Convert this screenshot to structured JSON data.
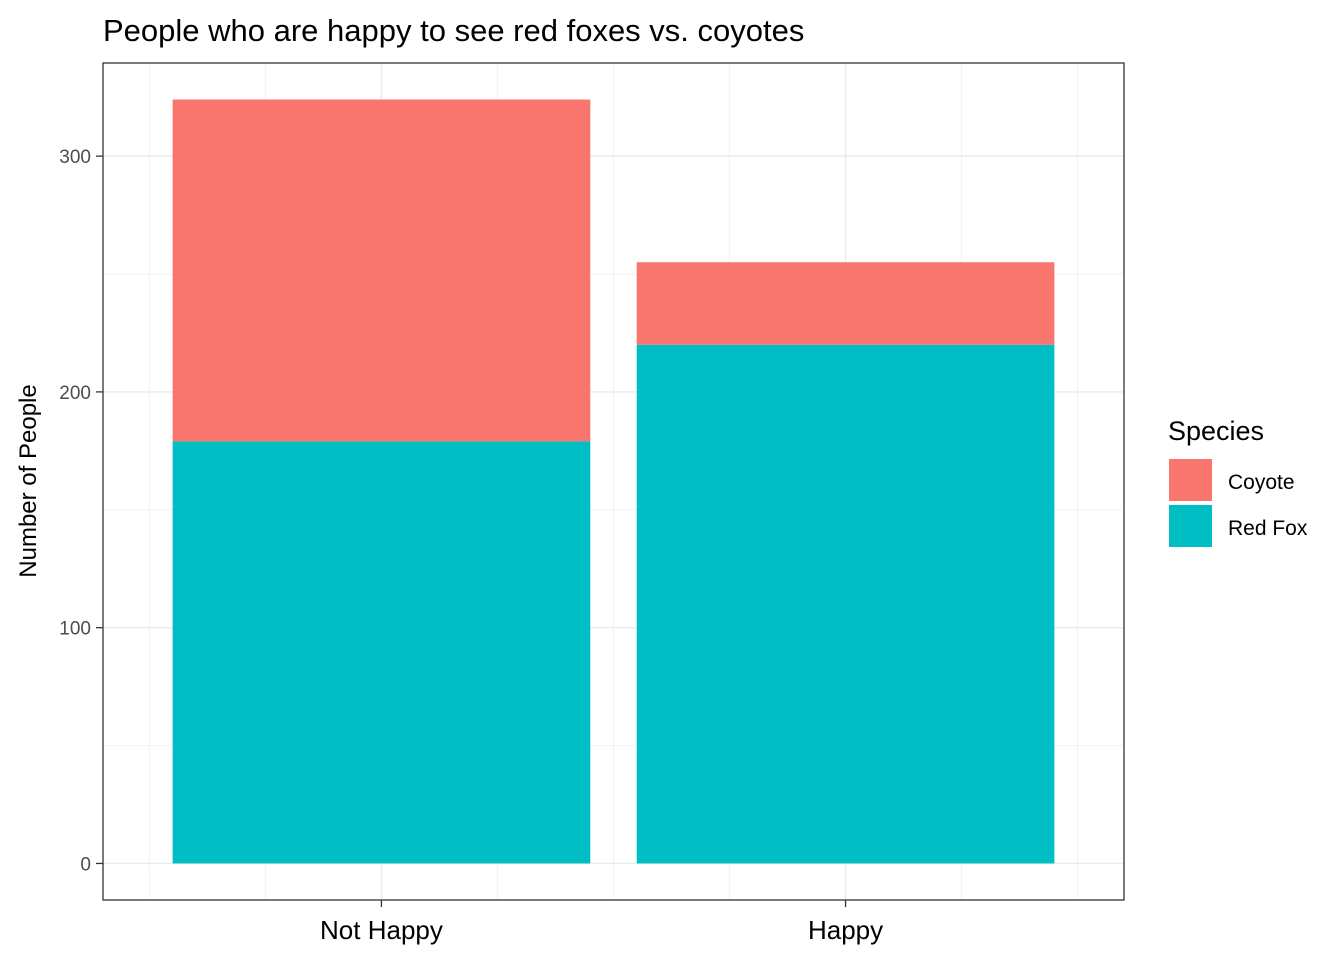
{
  "chart_data": {
    "type": "bar",
    "stacked": true,
    "title": "People who are happy to see red foxes vs. coyotes",
    "xlabel": "",
    "ylabel": "Number of People",
    "categories": [
      "Not Happy",
      "Happy"
    ],
    "series": [
      {
        "name": "Red Fox",
        "values": [
          179,
          220
        ],
        "color": "#00BFC4"
      },
      {
        "name": "Coyote",
        "values": [
          145,
          35
        ],
        "color": "#F8766D"
      }
    ],
    "ylim": [
      -15.5,
      339.5
    ],
    "yticks": [
      "0",
      "100",
      "200",
      "300"
    ],
    "grid": true,
    "legend": {
      "title": "Species",
      "placement": "right",
      "items": [
        {
          "label": "Coyote",
          "color": "#F8766D"
        },
        {
          "label": "Red Fox",
          "color": "#00BFC4"
        }
      ]
    }
  }
}
